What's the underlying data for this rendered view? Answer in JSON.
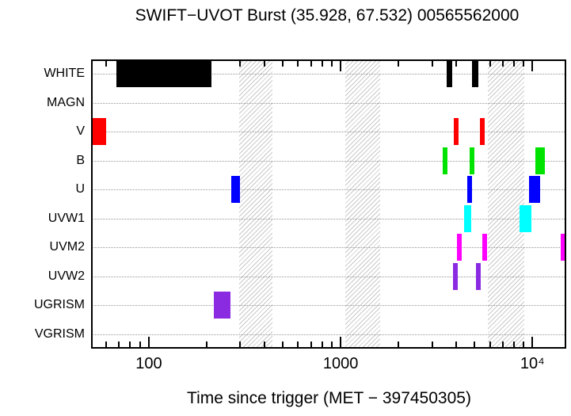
{
  "figure": {
    "title": "SWIFT−UVOT Burst (35.928, 67.532) 00565562000",
    "xlabel": "Time since trigger (MET − 397450305)"
  },
  "chart_data": {
    "type": "bar",
    "variant": "horizontal-interval-timeline",
    "title": "SWIFT−UVOT Burst (35.928, 67.532) 00565562000",
    "xlabel": "Time since trigger (MET − 397450305)",
    "ylabel": "",
    "x_scale": "log10",
    "xlim": [
      50,
      15000
    ],
    "grid": "horizontal-dotted",
    "legend": false,
    "x_major_ticks": [
      {
        "value": 100,
        "label": "100"
      },
      {
        "value": 1000,
        "label": "1000"
      },
      {
        "value": 10000,
        "label": "10⁴"
      }
    ],
    "x_minor_ticks": [
      60,
      70,
      80,
      90,
      200,
      300,
      400,
      500,
      600,
      700,
      800,
      900,
      2000,
      3000,
      4000,
      5000,
      6000,
      7000,
      8000,
      9000
    ],
    "rows": [
      {
        "label": "WHITE",
        "color": "#000000",
        "intervals": [
          [
            68,
            212
          ],
          [
            3580,
            3830
          ],
          [
            4850,
            5240
          ]
        ]
      },
      {
        "label": "MAGN",
        "color": "#000000",
        "intervals": []
      },
      {
        "label": "V",
        "color": "#ff0000",
        "intervals": [
          [
            51,
            60
          ],
          [
            3900,
            4130
          ],
          [
            5330,
            5650
          ]
        ]
      },
      {
        "label": "B",
        "color": "#00e300",
        "intervals": [
          [
            3410,
            3610
          ],
          [
            4710,
            4990
          ],
          [
            10400,
            11600
          ]
        ]
      },
      {
        "label": "U",
        "color": "#0000ff",
        "intervals": [
          [
            270,
            298
          ],
          [
            4580,
            4850
          ],
          [
            9600,
            11000
          ]
        ]
      },
      {
        "label": "UVW1",
        "color": "#00ffff",
        "intervals": [
          [
            4410,
            4800
          ],
          [
            8600,
            9900
          ]
        ]
      },
      {
        "label": "UVM2",
        "color": "#ff00ff",
        "intervals": [
          [
            4050,
            4290
          ],
          [
            5480,
            5810
          ],
          [
            14000,
            15000
          ]
        ]
      },
      {
        "label": "UVW2",
        "color": "#8a2be2",
        "intervals": [
          [
            3860,
            4090
          ],
          [
            5080,
            5390
          ]
        ]
      },
      {
        "label": "UGRISM",
        "color": "#8a2be2",
        "intervals": [
          [
            218,
            266
          ]
        ]
      },
      {
        "label": "VGRISM",
        "color": "#000000",
        "intervals": []
      }
    ],
    "hatched_bands": [
      [
        295,
        443
      ],
      [
        1060,
        1610
      ],
      [
        5860,
        9075
      ]
    ],
    "colors": {
      "background": "#ffffff",
      "frame": "#000000",
      "hatch": "#c9c9c9",
      "gridline": "#979797"
    }
  }
}
